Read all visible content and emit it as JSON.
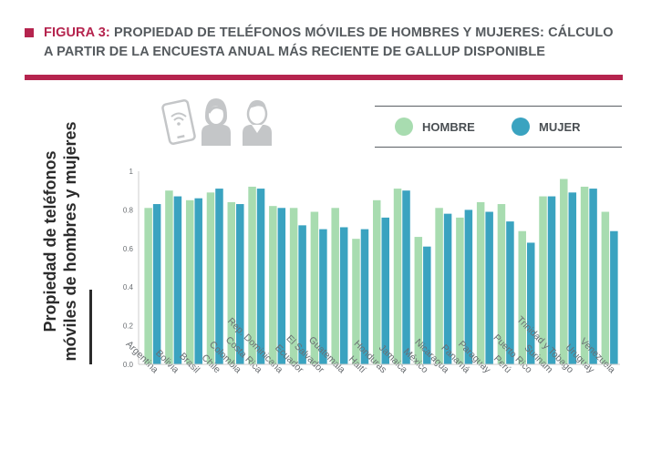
{
  "header": {
    "figure_label": "FIGURA 3:",
    "title_line1": "PROPIEDAD DE TELÉFONOS MÓVILES DE HOMBRES Y MUJERES: CÁLCULO",
    "title_line2": "A PARTIR DE LA ENCUESTA ANUAL MÁS RECIENTE DE GALLUP DISPONIBLE"
  },
  "icons": [
    "phone-wifi-icon",
    "woman-icon",
    "man-icon"
  ],
  "colors": {
    "accent": "#b5244e",
    "hombre": "#a8dcb0",
    "mujer": "#3aa3c0",
    "axis": "#cccccc",
    "text": "#4a4f53"
  },
  "chart_data": {
    "type": "bar",
    "ylabel_line1": "Propiedad de teléfonos",
    "ylabel_line2": "móviles de hombres y mujeres",
    "ylim": [
      0,
      1
    ],
    "yticks": [
      "0.0",
      "0.2",
      "0.4",
      "0.6",
      "0.8",
      "1"
    ],
    "legend_position": "top-right",
    "categories": [
      "Argentina",
      "Bolivia",
      "Brasil",
      "Chile",
      "Colombia",
      "Costa Rica",
      "Rep. Dominicana",
      "Ecuador",
      "El Salvador",
      "Guatemala",
      "Haití",
      "Honduras",
      "Jamaica",
      "México",
      "Nicaragua",
      "Panamá",
      "Paraguay",
      "Perú",
      "Puerto Rico",
      "Surinam",
      "Trinidad y Tobago",
      "Uruguay",
      "Venezuela"
    ],
    "series": [
      {
        "name": "HOMBRE",
        "values": [
          0.81,
          0.9,
          0.85,
          0.89,
          0.84,
          0.92,
          0.82,
          0.81,
          0.79,
          0.81,
          0.65,
          0.85,
          0.91,
          0.66,
          0.81,
          0.76,
          0.84,
          0.83,
          0.69,
          0.87,
          0.96,
          0.92,
          0.79
        ]
      },
      {
        "name": "MUJER",
        "values": [
          0.83,
          0.87,
          0.86,
          0.91,
          0.83,
          0.91,
          0.81,
          0.72,
          0.7,
          0.71,
          0.7,
          0.76,
          0.9,
          0.61,
          0.78,
          0.8,
          0.79,
          0.74,
          0.63,
          0.87,
          0.89,
          0.91,
          0.69
        ]
      }
    ]
  }
}
